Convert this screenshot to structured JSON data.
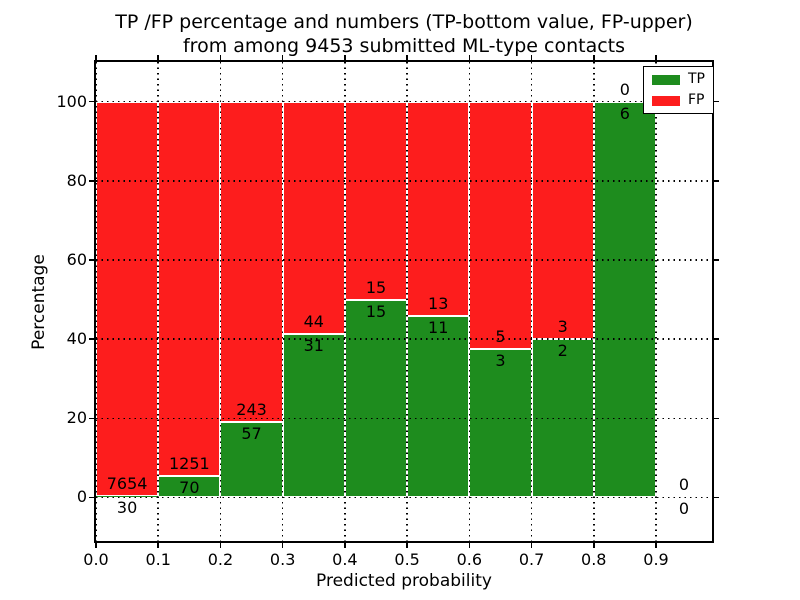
{
  "title": {
    "line1": "TP /FP percentage and numbers (TP-bottom value, FP-upper)",
    "line2": "from among 9453 submitted ML-type contacts"
  },
  "chart_data": {
    "type": "bar",
    "stacked": true,
    "normalized": "percent",
    "title": "TP /FP percentage and numbers (TP-bottom value, FP-upper) from among 9453 submitted ML-type contacts",
    "xlabel": "Predicted probability",
    "ylabel": "Percentage",
    "total_contacts": 9453,
    "bin_edges": [
      0.0,
      0.1,
      0.2,
      0.3,
      0.4,
      0.5,
      0.6,
      0.7,
      0.8,
      0.9,
      1.0
    ],
    "series": [
      {
        "name": "TP",
        "color": "#1e8c1e",
        "counts": [
          30,
          70,
          57,
          31,
          15,
          11,
          3,
          2,
          6,
          0
        ]
      },
      {
        "name": "FP",
        "color": "#fd1d1d",
        "counts": [
          7654,
          1251,
          243,
          44,
          15,
          13,
          5,
          3,
          0,
          0
        ]
      }
    ],
    "tp_percent": [
      0.39,
      5.3,
      19.0,
      41.33,
      50.0,
      45.83,
      37.5,
      40.0,
      100.0,
      0
    ],
    "xticks": [
      "0.0",
      "0.1",
      "0.2",
      "0.3",
      "0.4",
      "0.5",
      "0.6",
      "0.7",
      "0.8",
      "0.9"
    ],
    "yticks": [
      "0",
      "20",
      "40",
      "60",
      "80",
      "100"
    ],
    "xlim": [
      0.0,
      0.99
    ],
    "ylim": [
      -11,
      110
    ],
    "grid": "dotted",
    "grid_above_bars": true,
    "bar_edge_color": "#ffffff",
    "legend": {
      "position": "upper-right",
      "entries": [
        {
          "label": "TP",
          "color": "#1e8c1e"
        },
        {
          "label": "FP",
          "color": "#fd1d1d"
        }
      ]
    }
  }
}
